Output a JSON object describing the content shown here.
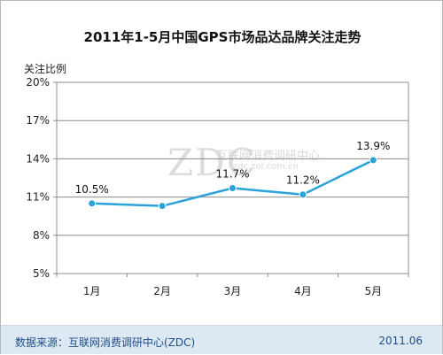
{
  "chart_data": {
    "type": "line",
    "title": "2011年1-5月中国GPS市场品达品牌关注走势",
    "ylabel": "关注比例",
    "xlabel": "",
    "categories": [
      "1月",
      "2月",
      "3月",
      "4月",
      "5月"
    ],
    "values": [
      10.5,
      10.3,
      11.7,
      11.2,
      13.9
    ],
    "data_labels": [
      "10.5%",
      "",
      "11.7%",
      "11.2%",
      "13.9%"
    ],
    "ylim": [
      5,
      20
    ],
    "yticks": [
      20,
      17,
      14,
      11,
      8,
      5
    ],
    "ytick_labels": [
      "20%",
      "17%",
      "14%",
      "11%",
      "8%",
      "5%"
    ],
    "grid": true,
    "line_color": "#29a3d9",
    "marker_color": "#29a3d9"
  },
  "watermark": {
    "logo": "ZDC",
    "name": "互联网消费调研中心",
    "url": "zdc.zol.com.cn"
  },
  "footer": {
    "source": "数据来源：互联网消费调研中心(ZDC)",
    "date": "2011.06"
  }
}
